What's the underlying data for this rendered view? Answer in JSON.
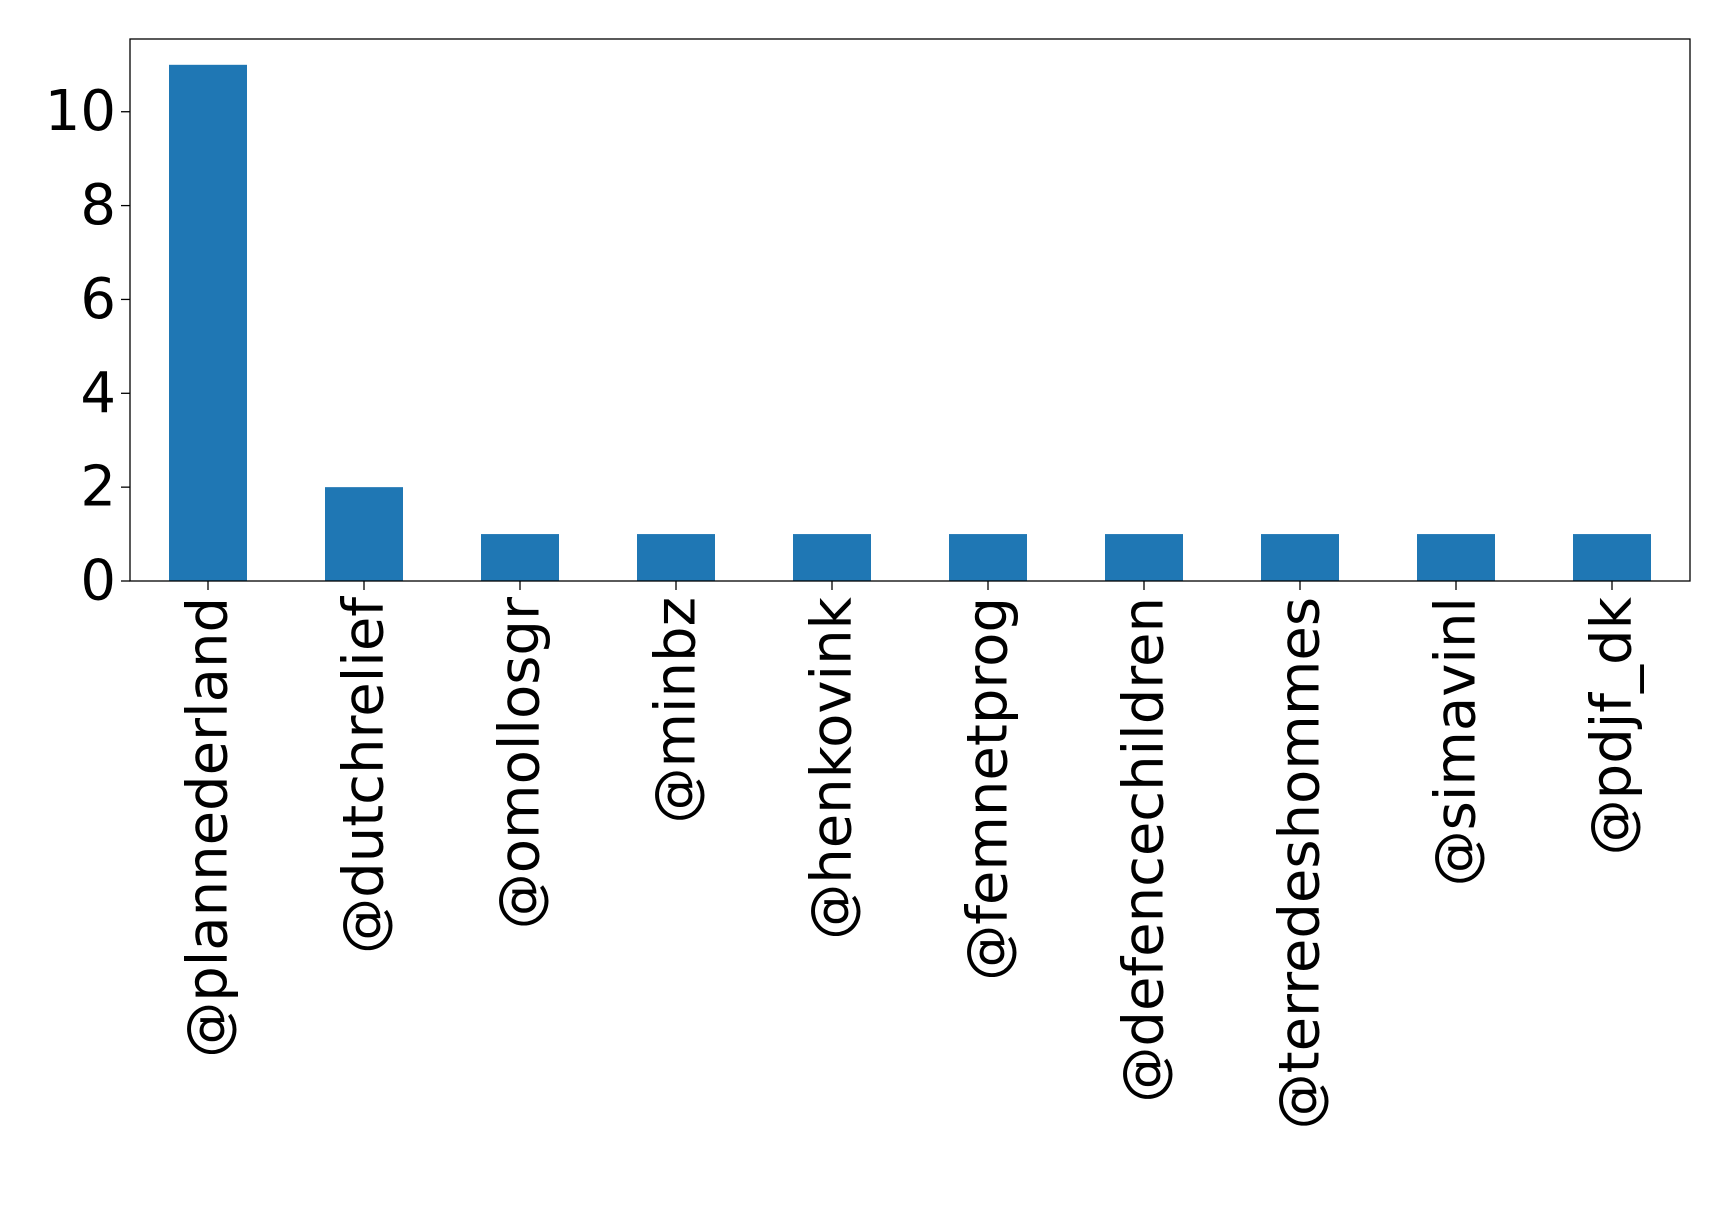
{
  "chart_data": {
    "type": "bar",
    "title": "",
    "xlabel": "",
    "ylabel": "",
    "categories": [
      "@plannederland",
      "@dutchrelief",
      "@omollosgr",
      "@minbz",
      "@henkovink",
      "@femnetprog",
      "@defencechildren",
      "@terredeshommes",
      "@simavinl",
      "@pdjf_dk"
    ],
    "values": [
      11,
      2,
      1,
      1,
      1,
      1,
      1,
      1,
      1,
      1
    ],
    "ylim": [
      0,
      11.55
    ],
    "yticks": [
      0,
      2,
      4,
      6,
      8,
      10
    ],
    "bar_color": "#1f77b4",
    "grid": false,
    "legend": "none"
  }
}
